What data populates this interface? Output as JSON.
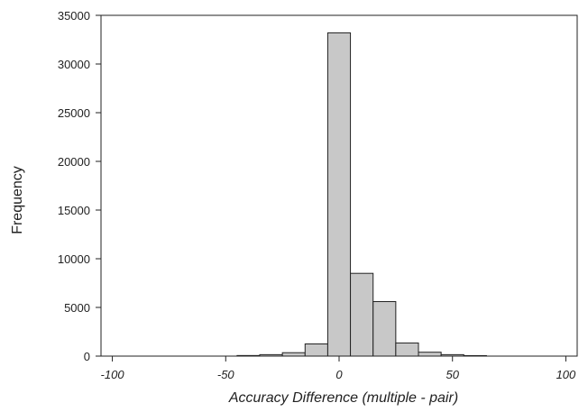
{
  "chart_data": {
    "type": "bar",
    "subtype": "histogram",
    "title": "",
    "xlabel": "Accuracy Difference (multiple - pair)",
    "ylabel": "Frequency",
    "xlim": [
      -100,
      100
    ],
    "ylim": [
      0,
      35000
    ],
    "x_ticks": [
      -100,
      -50,
      0,
      50,
      100
    ],
    "x_tick_labels": [
      "-100",
      "-50",
      "0",
      "50",
      "100"
    ],
    "y_ticks": [
      0,
      5000,
      10000,
      15000,
      20000,
      25000,
      30000,
      35000
    ],
    "y_tick_labels": [
      "0",
      "5000",
      "10000",
      "15000",
      "20000",
      "25000",
      "30000",
      "35000"
    ],
    "bin_width": 10,
    "bins": [
      {
        "x0": -45,
        "x1": -35,
        "value": 60
      },
      {
        "x0": -35,
        "x1": -25,
        "value": 150
      },
      {
        "x0": -25,
        "x1": -15,
        "value": 350
      },
      {
        "x0": -15,
        "x1": -5,
        "value": 1250
      },
      {
        "x0": -5,
        "x1": 5,
        "value": 33200
      },
      {
        "x0": 5,
        "x1": 15,
        "value": 8500
      },
      {
        "x0": 15,
        "x1": 25,
        "value": 5600
      },
      {
        "x0": 25,
        "x1": 35,
        "value": 1350
      },
      {
        "x0": 35,
        "x1": 45,
        "value": 400
      },
      {
        "x0": 45,
        "x1": 55,
        "value": 150
      },
      {
        "x0": 55,
        "x1": 65,
        "value": 50
      }
    ],
    "grid": false,
    "legend": "none",
    "colors": {
      "bar_fill": "#c8c8c8",
      "bar_stroke": "#222222",
      "axis": "#222222",
      "text": "#222222"
    }
  }
}
